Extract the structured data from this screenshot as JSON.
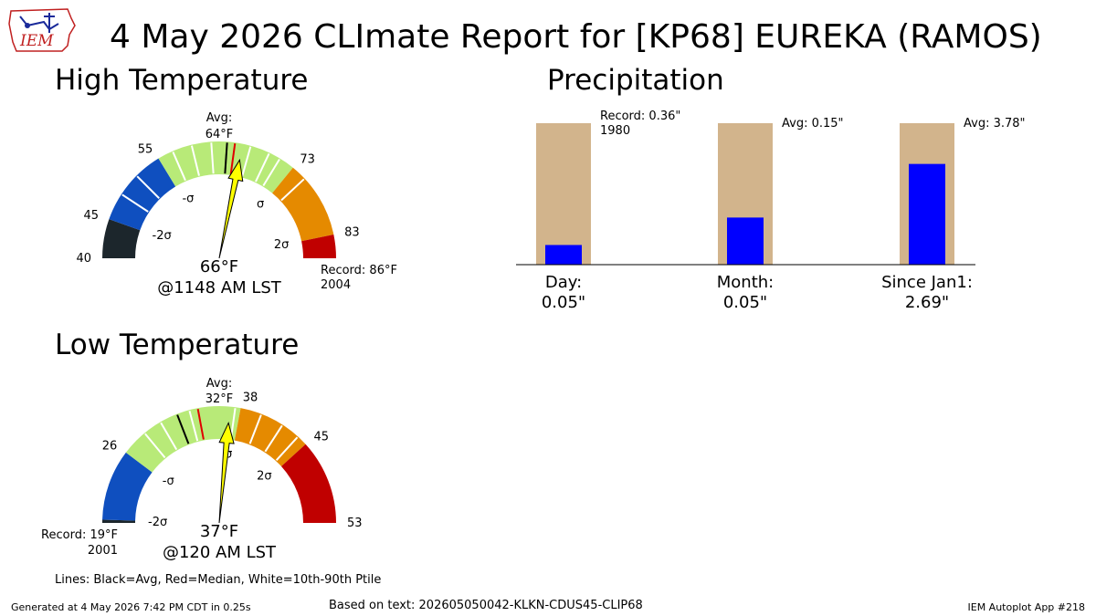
{
  "header": {
    "title": "4 May 2026 CLImate Report for [KP68] EUREKA (RAMOS)",
    "logo_text": "IEM"
  },
  "sections": {
    "high_title": "High Temperature",
    "low_title": "Low Temperature",
    "precip_title": "Precipitation"
  },
  "colors": {
    "dark": "#1c262c",
    "blue": "#0f4fbf",
    "green": "#b8ea78",
    "orange": "#e58a00",
    "red": "#c00000",
    "needle": "#ffff00",
    "precip_bar": "#0000ff",
    "precip_bg": "#d2b48c"
  },
  "chart_data": [
    {
      "type": "gauge",
      "name": "High Temperature",
      "unit": "°F",
      "range": [
        40,
        86
      ],
      "band_stops": [
        40,
        45,
        55,
        73,
        83,
        86
      ],
      "band_colors": [
        "dark",
        "blue",
        "green",
        "orange",
        "red"
      ],
      "tick_labels": [
        "40",
        "45",
        "55",
        "73",
        "83"
      ],
      "sigma_labels": [
        "-2σ",
        "-σ",
        "σ",
        "2σ"
      ],
      "sigma_values": [
        45,
        55,
        73,
        83
      ],
      "avg": 64,
      "median": 65,
      "white_lines": [
        48.5,
        51.5,
        57,
        59.5,
        62,
        67,
        69.5,
        71,
        75
      ],
      "value": 66,
      "value_text": "66°F",
      "time_text": "@1148 AM LST",
      "avg_text": [
        "Avg:",
        "64°F"
      ],
      "record_text": [
        "Record: 86°F",
        "2004"
      ]
    },
    {
      "type": "gauge",
      "name": "Low Temperature",
      "unit": "°F",
      "range": [
        19,
        53
      ],
      "band_stops": [
        19,
        19.3,
        26,
        38,
        45,
        53
      ],
      "band_colors": [
        "dark",
        "blue",
        "green",
        "orange",
        "red"
      ],
      "tick_labels": [
        "26",
        "38",
        "45",
        "53"
      ],
      "sigma_labels": [
        "-2σ",
        "-σ",
        "σ",
        "2σ"
      ],
      "sigma_values": [
        19.3,
        26,
        38,
        45
      ],
      "avg": 32,
      "median": 34,
      "white_lines": [
        28.5,
        30.3,
        33.2,
        37.5,
        40,
        42.2,
        44
      ],
      "value": 37,
      "value_text": "37°F",
      "time_text": "@120 AM LST",
      "avg_text": [
        "Avg:",
        "32°F"
      ],
      "record_text": [
        "Record: 19°F",
        "2001"
      ]
    },
    {
      "type": "bar",
      "name": "Precipitation",
      "categories": [
        "Day",
        "Month",
        "Since Jan1"
      ],
      "values": [
        0.05,
        0.05,
        2.69
      ],
      "reference": [
        0.36,
        0.15,
        3.78
      ],
      "fraction_of_reference": [
        0.139,
        0.333,
        0.712
      ],
      "labels": [
        [
          "Day:",
          "0.05\""
        ],
        [
          "Month:",
          "0.05\""
        ],
        [
          "Since Jan1:",
          "2.69\""
        ]
      ],
      "annotations": [
        [
          "Record: 0.36\"",
          "1980"
        ],
        [
          "Avg: 0.15\""
        ],
        [
          "Avg: 3.78\""
        ]
      ]
    }
  ],
  "legend_note": "Lines: Black=Avg, Red=Median, White=10th-90th Ptile",
  "footer": {
    "generated": "Generated at 4 May 2026 7:42 PM CDT in 0.25s",
    "based_on": "Based on text: 202605050042-KLKN-CDUS45-CLIP68",
    "app": "IEM Autoplot App #218"
  }
}
